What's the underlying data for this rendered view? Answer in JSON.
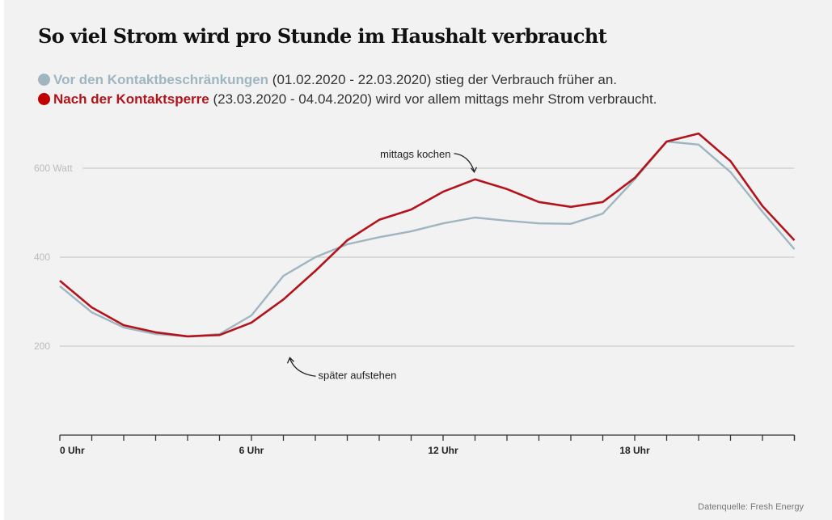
{
  "header": {
    "title": "So viel Strom wird pro Stunde im Haushalt verbraucht"
  },
  "legend": [
    {
      "name": "Vor den Kontaktbeschränkungen",
      "rest": " (01.02.2020 - 22.03.2020) stieg der Verbrauch früher an.",
      "color": "#9fb6c1"
    },
    {
      "name": "Nach der Kontaktsperre",
      "rest": " (23.03.2020 - 04.04.2020) wird vor allem mittags mehr Strom verbraucht.",
      "color": "#c00000"
    }
  ],
  "footer": {
    "source": "Datenquelle: Fresh Energy"
  },
  "chart_data": {
    "type": "line",
    "title": "So viel Strom wird pro Stunde im Haushalt verbraucht",
    "xlabel": "",
    "ylabel": "Watt",
    "x": [
      0,
      1,
      2,
      3,
      4,
      5,
      6,
      7,
      8,
      9,
      10,
      11,
      12,
      13,
      14,
      15,
      16,
      17,
      18,
      19,
      20,
      21,
      22,
      23
    ],
    "xlim": [
      0,
      23
    ],
    "ylim": [
      0,
      700
    ],
    "grid": true,
    "yticks": [
      {
        "value": 200,
        "label": "200"
      },
      {
        "value": 400,
        "label": "400"
      },
      {
        "value": 600,
        "label": "600 Watt"
      }
    ],
    "xticks": [
      {
        "value": 0,
        "label": "0 Uhr"
      },
      {
        "value": 6,
        "label": "6 Uhr"
      },
      {
        "value": 12,
        "label": "12 Uhr"
      },
      {
        "value": 18,
        "label": "18 Uhr"
      }
    ],
    "series": [
      {
        "name": "Vor den Kontaktbeschränkungen",
        "color": "#9fb6c1",
        "values": [
          335,
          276,
          242,
          227,
          222,
          227,
          269,
          358,
          400,
          429,
          445,
          458,
          476,
          489,
          482,
          476,
          475,
          498,
          575,
          660,
          653,
          591,
          502,
          418
        ]
      },
      {
        "name": "Nach der Kontaktsperre",
        "color": "#b3141c",
        "values": [
          347,
          287,
          247,
          231,
          222,
          225,
          253,
          305,
          369,
          438,
          484,
          507,
          547,
          575,
          553,
          524,
          513,
          524,
          578,
          660,
          678,
          616,
          515,
          438
        ]
      }
    ],
    "annotations": [
      {
        "text": "mittags kochen",
        "x": 13,
        "y": 575,
        "position": "above-left"
      },
      {
        "text": "später aufstehen",
        "x": 7,
        "y": 305,
        "position": "below-right"
      }
    ]
  }
}
